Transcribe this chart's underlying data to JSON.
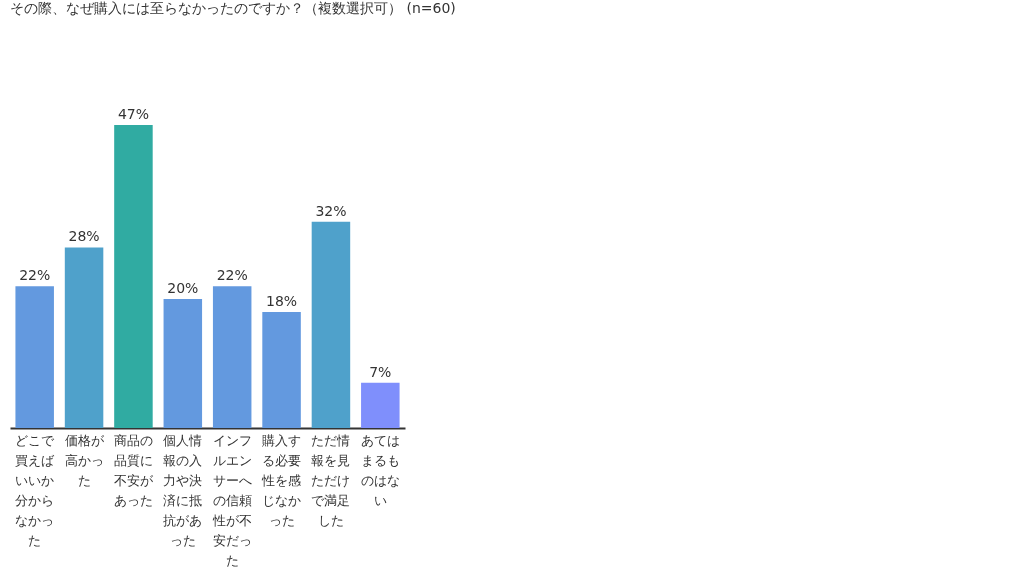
{
  "chart_data": {
    "type": "bar",
    "title": "その際、なぜ購入には至らなかったのですか？（複数選択可） (n=60)",
    "categories": [
      "どこで買えばいいか分からなかった",
      "価格が高かった",
      "商品の品質に不安があった",
      "個人情報の入力や決済に抵抗があった",
      "インフルエンサーへの信頼性が不安だった",
      "購入する必要性を感じなかった",
      "ただ情報を見ただけで満足した",
      "あてはまるものはない"
    ],
    "values": [
      22,
      28,
      47,
      20,
      22,
      18,
      32,
      7
    ],
    "value_labels": [
      "22%",
      "28%",
      "47%",
      "20%",
      "22%",
      "18%",
      "32%",
      "7%"
    ],
    "colors": [
      "#6399df",
      "#4fa1cb",
      "#30aba2",
      "#6399df",
      "#6399df",
      "#6399df",
      "#4fa1cb",
      "#7f8ffc"
    ]
  }
}
